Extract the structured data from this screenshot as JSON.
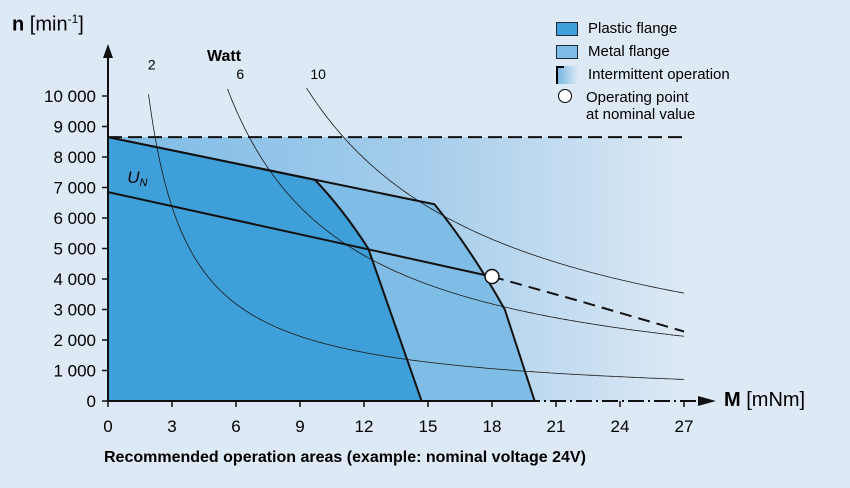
{
  "chart_data": {
    "type": "line",
    "title": "",
    "caption": "Recommended operation areas (example: nominal voltage 24V)",
    "xlabel_sym": "M",
    "xlabel_unit": "[mNm]",
    "ylabel_sym": "n",
    "ylabel_unit": "[min",
    "ylabel_exp": "-1",
    "ylabel_close": "]",
    "xlim": [
      0,
      27
    ],
    "ylim": [
      0,
      10000
    ],
    "xticks": [
      0,
      3,
      6,
      9,
      12,
      15,
      18,
      21,
      24,
      27
    ],
    "xtick_labels": [
      "0",
      "3",
      "6",
      "9",
      "12",
      "15",
      "18",
      "21",
      "24",
      "27"
    ],
    "yticks": [
      0,
      1000,
      2000,
      3000,
      4000,
      5000,
      6000,
      7000,
      8000,
      9000,
      10000
    ],
    "ytick_labels": [
      "0",
      "1 000",
      "2 000",
      "3 000",
      "4 000",
      "5 000",
      "6 000",
      "7 000",
      "8 000",
      "9 000",
      "10 000"
    ],
    "max_speed_line": 8650,
    "plastic_flange_area": [
      [
        0,
        0
      ],
      [
        0,
        8650
      ],
      [
        9.7,
        7250
      ],
      [
        11,
        6300
      ],
      [
        12.2,
        5000
      ],
      [
        14.7,
        0
      ]
    ],
    "metal_flange_area": [
      [
        0,
        0
      ],
      [
        0,
        8650
      ],
      [
        15.3,
        6450
      ],
      [
        17,
        5000
      ],
      [
        18.6,
        3000
      ],
      [
        20,
        0
      ]
    ],
    "nominal_voltage_line": {
      "name": "U",
      "subscript": "N",
      "points": [
        [
          0,
          6850
        ],
        [
          18,
          4080
        ]
      ]
    },
    "intermittent_line": [
      [
        18,
        4080
      ],
      [
        22,
        3300
      ],
      [
        27,
        2280
      ]
    ],
    "operating_point": [
      18,
      4080
    ],
    "power_curves_label": "Watt",
    "power_curves": [
      {
        "watt": 2,
        "label": "2",
        "top": [
          2.05,
          10600
        ]
      },
      {
        "watt": 6,
        "label": "6",
        "top": [
          6.2,
          10300
        ]
      },
      {
        "watt": 10,
        "label": "10",
        "top": [
          9.85,
          10300
        ]
      }
    ],
    "legend": {
      "plastic": "Plastic flange",
      "metal": "Metal flange",
      "intermittent": "Intermittent operation",
      "operating_line1": "Operating point",
      "operating_line2": "at nominal value"
    },
    "colors": {
      "background": "#dde9f5",
      "plastic": "#3f9fd9",
      "metal": "#80bde6",
      "gradient_start": "#7dbbe6"
    }
  }
}
